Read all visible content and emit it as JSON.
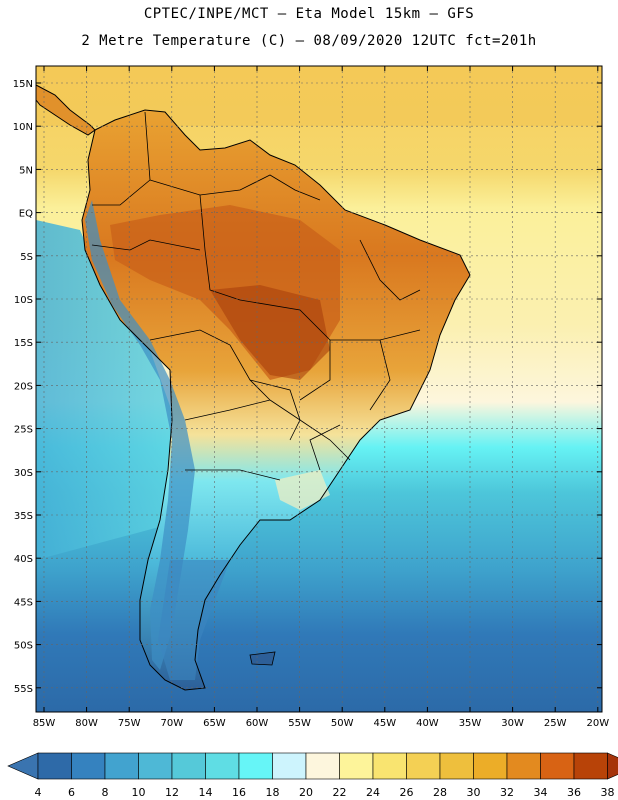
{
  "header": {
    "title_line1": "CPTEC/INPE/MCT –  Eta Model 15km – GFS",
    "title_line2": "2 Metre Temperature (C) – 08/09/2020 12UTC fct=201h"
  },
  "map": {
    "region": "South America",
    "lat_labels": [
      "15N",
      "10N",
      "5N",
      "EQ",
      "5S",
      "10S",
      "15S",
      "20S",
      "25S",
      "30S",
      "35S",
      "40S",
      "45S",
      "50S",
      "55S"
    ],
    "lon_labels": [
      "85W",
      "80W",
      "75W",
      "70W",
      "65W",
      "60W",
      "55W",
      "50W",
      "45W",
      "40W",
      "35W",
      "30W",
      "25W",
      "20W"
    ]
  },
  "colorbar": {
    "labels": [
      "4",
      "6",
      "8",
      "10",
      "12",
      "14",
      "16",
      "18",
      "20",
      "22",
      "24",
      "26",
      "28",
      "30",
      "32",
      "34",
      "36",
      "38"
    ],
    "colors": [
      "#2e6aa8",
      "#3582bf",
      "#42a3cf",
      "#4eb8d6",
      "#55c9d9",
      "#5fdde4",
      "#66f5f7",
      "#cdf4fd",
      "#fdf6dd",
      "#fdf49a",
      "#f9e470",
      "#f4d054",
      "#eebf3d",
      "#ecad28",
      "#e38a1f",
      "#d86314",
      "#b84308"
    ],
    "under_color": "#3a74b0",
    "over_color": "#a6330a"
  }
}
